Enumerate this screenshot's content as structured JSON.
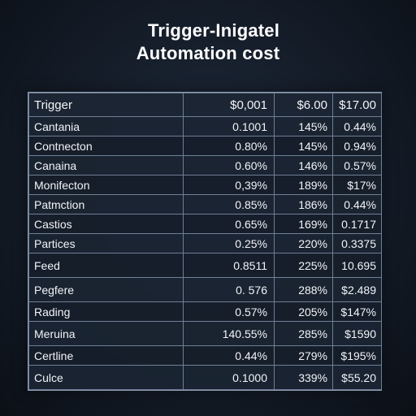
{
  "title": {
    "line1": "Trigger-Inigatel",
    "line2": "Automation cost"
  },
  "table": {
    "headers": [
      "Trigger",
      "$0,001",
      "$6.00",
      "$17.00"
    ],
    "rows": [
      {
        "label": "Cantania",
        "values": [
          "0.1001",
          "145%",
          "0.44%"
        ]
      },
      {
        "label": "Contnecton",
        "values": [
          "0.80%",
          "145%",
          "0.94%"
        ]
      },
      {
        "label": "Canaina",
        "values": [
          "0.60%",
          "146%",
          "0.57%"
        ]
      },
      {
        "label": "Monifecton",
        "values": [
          "0,39%",
          "189%",
          "$17%"
        ]
      },
      {
        "label": "Patmction",
        "values": [
          "0.85%",
          "186%",
          "0.44%"
        ]
      },
      {
        "label": "Castios",
        "values": [
          "0.65%",
          "169%",
          "0.1717"
        ]
      },
      {
        "label": "Partices",
        "values": [
          "0.25%",
          "220%",
          "0.3375"
        ]
      },
      {
        "label": "Feed",
        "values": [
          "0.8511",
          "225%",
          "10.695"
        ]
      },
      {
        "label": "Pegfere",
        "values": [
          "0. 576",
          "288%",
          "$2.489"
        ]
      },
      {
        "label": "Rading",
        "values": [
          "0.57%",
          "205%",
          "$147%"
        ]
      },
      {
        "label": "Meruina",
        "values": [
          "140.55%",
          "285%",
          "$1590"
        ]
      },
      {
        "label": "Certline",
        "values": [
          "0.44%",
          "279%",
          "$195%"
        ]
      },
      {
        "label": "Culce",
        "values": [
          "0.1000",
          "339%",
          "$55.20"
        ]
      }
    ]
  }
}
